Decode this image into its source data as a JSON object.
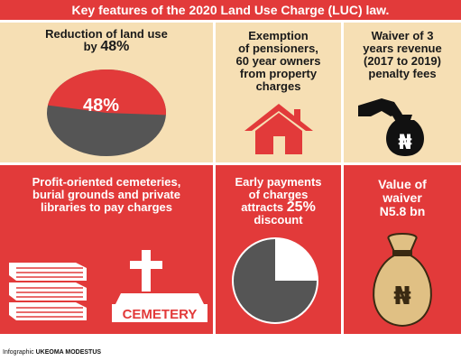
{
  "title": "Key features of the 2020 Land Use Charge (LUC) law.",
  "panels": {
    "p1": {
      "line1": "Reduction of land use",
      "line2a": "by ",
      "line2b": "48%",
      "pie_label": "48%",
      "percent": 48
    },
    "p2": {
      "line1": "Exemption",
      "line2": "of pensioners,",
      "line3": "60 year owners",
      "line4": "from property",
      "line5": "charges"
    },
    "p3": {
      "line1": "Waiver of 3",
      "line2": "years revenue",
      "line3": "(2017 to 2019)",
      "line4": "penalty fees",
      "currency": "₦"
    },
    "p4": {
      "line1": "Profit-oriented cemeteries,",
      "line2": "burial grounds and private",
      "line3": "libraries to pay charges",
      "sign": "CEMETERY"
    },
    "p5": {
      "line1": "Early payments",
      "line2": "of charges",
      "line3a": "attracts ",
      "line3b": "25%",
      "line4": "discount",
      "percent": 25
    },
    "p6": {
      "line1": "Value of",
      "line2": "waiver",
      "line3": "N5.8 bn",
      "currency": "₦"
    }
  },
  "credit": {
    "prefix": "Infographic ",
    "name": "UKEOMA MODESTUS"
  },
  "colors": {
    "red": "#e23a3a",
    "beige": "#f6dfb4",
    "dark": "#555555",
    "bag": "#e0c084"
  },
  "icons": [
    "pie-chart-icon",
    "house-icon",
    "money-bag-hand-icon",
    "books-icon",
    "tombstone-cross-icon",
    "money-bag-icon"
  ]
}
